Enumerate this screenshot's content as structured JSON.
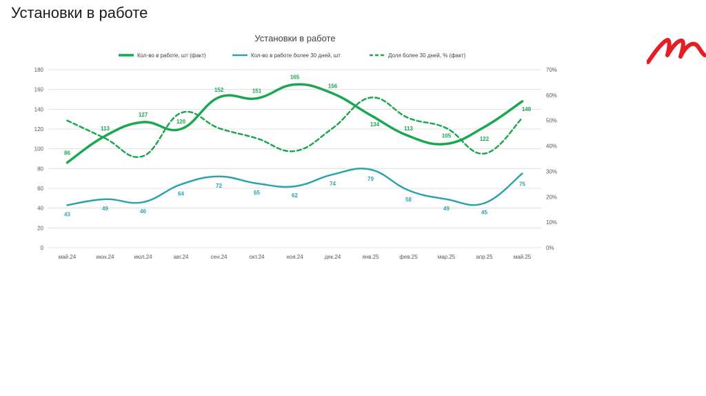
{
  "slide_title": "Установки в работе",
  "colors": {
    "green": "#1BA750",
    "teal": "#2BA3AE",
    "grid": "#D9D9D9",
    "axis_text": "#595959",
    "logo_red": "#E31E24"
  },
  "chart_data": {
    "type": "line",
    "title": "Установки в работе",
    "categories": [
      "май.24",
      "июн.24",
      "июл.24",
      "авг.24",
      "сен.24",
      "окт.24",
      "ноя.24",
      "дек.24",
      "янв.25",
      "фев.25",
      "мар.25",
      "апр.25",
      "май.25"
    ],
    "ylim": [
      0,
      180
    ],
    "y_ticks": [
      0,
      20,
      40,
      60,
      80,
      100,
      120,
      140,
      160,
      180
    ],
    "y2lim": [
      0,
      70
    ],
    "y2_ticks": [
      "0%",
      "10%",
      "20%",
      "30%",
      "40%",
      "50%",
      "60%",
      "70%"
    ],
    "legend_position": "top",
    "series": [
      {
        "name": "Кол-во в работе, шт (факт)",
        "axis": "left",
        "style": "solid-thick",
        "color": "#1BA750",
        "values": [
          86,
          113,
          127,
          120,
          152,
          151,
          165,
          156,
          134,
          113,
          105,
          122,
          148
        ]
      },
      {
        "name": "Кол-во в работе более 30 дней, шт",
        "axis": "left",
        "style": "solid",
        "color": "#2BA3AE",
        "values": [
          43,
          49,
          46,
          64,
          72,
          65,
          62,
          74,
          79,
          58,
          49,
          45,
          75
        ]
      },
      {
        "name": "Доля более 30 дней, % (факт)",
        "axis": "right",
        "style": "dashed",
        "color": "#1BA750",
        "values": [
          50,
          43,
          36,
          53,
          47,
          43,
          38,
          47,
          59,
          51,
          47,
          37,
          51
        ]
      }
    ]
  }
}
